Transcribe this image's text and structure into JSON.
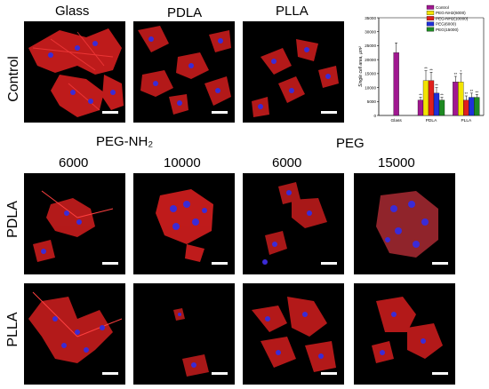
{
  "column_labels_top": [
    "Glass",
    "PDLA",
    "PLLA"
  ],
  "row_label_control": "Control",
  "group_labels": {
    "peg_nh2": "PEG-NH₂",
    "peg": "PEG"
  },
  "column_labels_bottom": [
    "6000",
    "10000",
    "6000",
    "15000"
  ],
  "row_labels_bottom": [
    "PDLA",
    "PLLA"
  ],
  "colors": {
    "background": "#000000",
    "actin": "#e02020",
    "nucleus": "#3b2bd6",
    "scale_bar": "#ffffff"
  },
  "chart_data": {
    "type": "bar",
    "categories": [
      "Glass",
      "PDLA",
      "PLLA"
    ],
    "ylabel": "Single cell area, µm²",
    "ylim": [
      0,
      35000
    ],
    "yticks": [
      0,
      5000,
      10000,
      15000,
      20000,
      25000,
      30000,
      35000
    ],
    "legend_position": "top-right",
    "series": [
      {
        "name": "Control",
        "color": "#a01890",
        "values": [
          22500,
          5500,
          12000
        ]
      },
      {
        "name": "PEG-NH2(6000)",
        "color": "#f2e400",
        "values": [
          null,
          12500,
          12000
        ]
      },
      {
        "name": "PEG-NH2(10000)",
        "color": "#e0201c",
        "values": [
          null,
          12500,
          5500
        ]
      },
      {
        "name": "PEG(6000)",
        "color": "#2030d8",
        "values": [
          null,
          8000,
          6500
        ]
      },
      {
        "name": "PEG(15000)",
        "color": "#1e8a22",
        "values": [
          null,
          5500,
          6500
        ]
      }
    ],
    "errors": [
      [
        3500,
        1000,
        2000
      ],
      [
        null,
        3500,
        3000
      ],
      [
        null,
        3000,
        1500
      ],
      [
        null,
        2000,
        1500
      ],
      [
        null,
        1000,
        1000
      ]
    ],
    "annotations": [
      [
        "",
        "**",
        "**"
      ],
      [
        "",
        "**",
        "*"
      ],
      [
        "",
        "**",
        "**"
      ],
      [
        "",
        "**",
        "**"
      ],
      [
        "",
        "**",
        "**"
      ]
    ]
  }
}
